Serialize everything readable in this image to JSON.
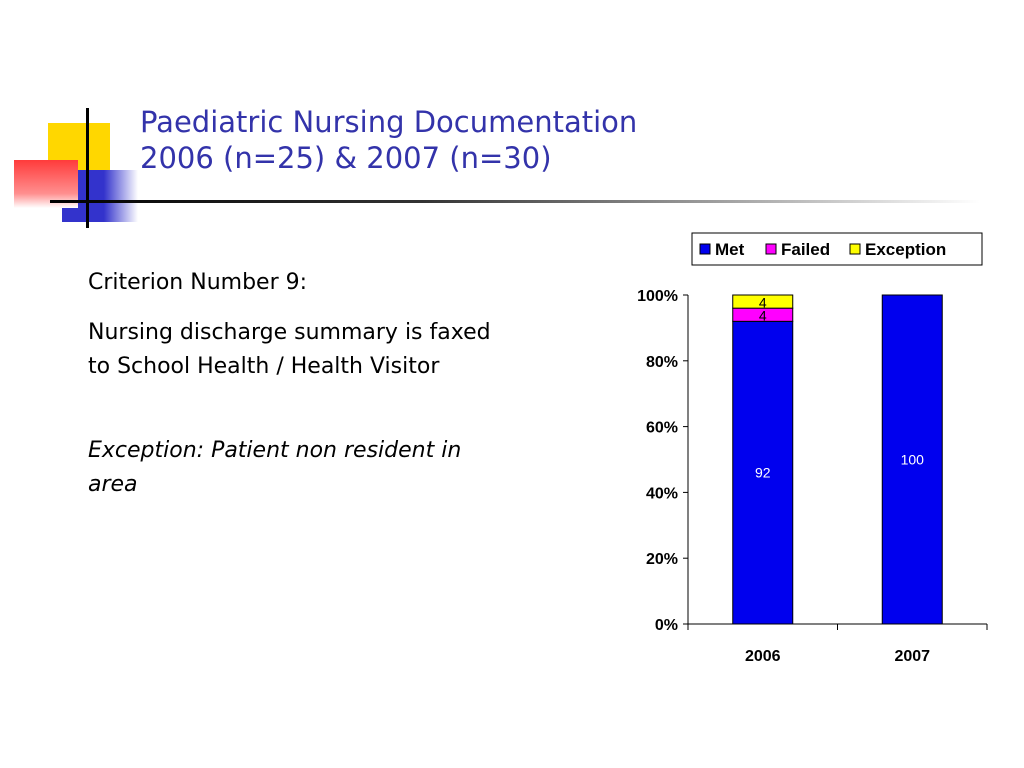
{
  "slide": {
    "title_line1": "Paediatric Nursing Documentation",
    "title_line2": "2006 (n=25) & 2007 (n=30)",
    "criterion": "Criterion Number 9:",
    "description": "Nursing discharge summary is faxed to School Health / Health Visitor",
    "exception": "Exception: Patient non resident in area"
  },
  "chart_data": {
    "type": "bar",
    "stacked": true,
    "percent_stacked": true,
    "categories": [
      "2006",
      "2007"
    ],
    "series": [
      {
        "name": "Met",
        "values": [
          92,
          100
        ],
        "color": "#0000ee"
      },
      {
        "name": "Failed",
        "values": [
          4,
          0
        ],
        "color": "#ff00ff"
      },
      {
        "name": "Exception",
        "values": [
          4,
          0
        ],
        "color": "#ffff00"
      }
    ],
    "ylim": [
      0,
      100
    ],
    "yticks": [
      "0%",
      "20%",
      "40%",
      "60%",
      "80%",
      "100%"
    ],
    "legend_position": "top-right",
    "data_labels": true
  }
}
